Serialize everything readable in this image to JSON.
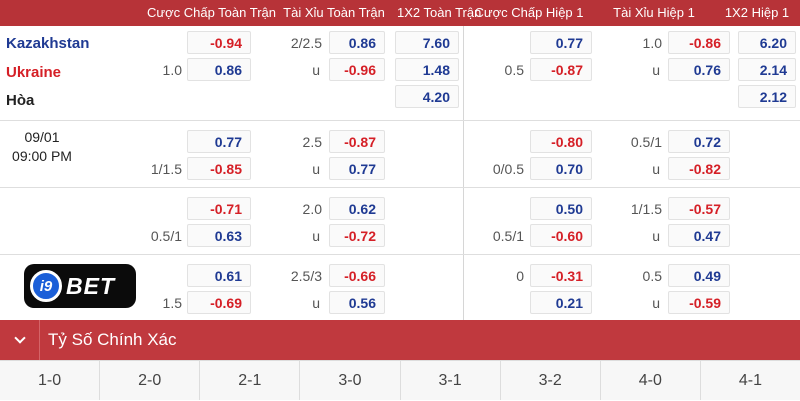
{
  "headers": [
    "Cược Chấp Toàn Trận",
    "Tài Xỉu Toàn Trận",
    "1X2 Toàn Trận",
    "Cược Chấp Hiệp 1",
    "Tài Xỉu Hiệp 1",
    "1X2 Hiệp 1"
  ],
  "match": {
    "home": "Kazakhstan",
    "away": "Ukraine",
    "draw": "Hòa",
    "date": "09/01",
    "time": "09:00 PM"
  },
  "rows": [
    {
      "ft_hcp": "1.0",
      "ft_hcp_home": "-0.94",
      "ft_hcp_away": "0.86",
      "ft_ou": "2/2.5",
      "ft_ou_u": "u",
      "ft_ou_over": "0.86",
      "ft_ou_under": "-0.96",
      "ft_1x2": [
        "7.60",
        "1.48",
        "4.20"
      ],
      "h1_hcp": "0.5",
      "h1_hcp_home": "0.77",
      "h1_hcp_away": "-0.87",
      "h1_ou": "1.0",
      "h1_ou_u": "u",
      "h1_ou_over": "-0.86",
      "h1_ou_under": "0.76",
      "h1_1x2": [
        "6.20",
        "2.14",
        "2.12"
      ]
    },
    {
      "ft_hcp": "1/1.5",
      "ft_hcp_home": "0.77",
      "ft_hcp_away": "-0.85",
      "ft_ou": "2.5",
      "ft_ou_u": "u",
      "ft_ou_over": "-0.87",
      "ft_ou_under": "0.77",
      "h1_hcp": "0/0.5",
      "h1_hcp_home": "-0.80",
      "h1_hcp_away": "0.70",
      "h1_ou": "0.5/1",
      "h1_ou_u": "u",
      "h1_ou_over": "0.72",
      "h1_ou_under": "-0.82"
    },
    {
      "ft_hcp": "0.5/1",
      "ft_hcp_home": "-0.71",
      "ft_hcp_away": "0.63",
      "ft_ou": "2.0",
      "ft_ou_u": "u",
      "ft_ou_over": "0.62",
      "ft_ou_under": "-0.72",
      "h1_hcp": "0.5/1",
      "h1_hcp_home": "0.50",
      "h1_hcp_away": "-0.60",
      "h1_ou": "1/1.5",
      "h1_ou_u": "u",
      "h1_ou_over": "-0.57",
      "h1_ou_under": "0.47"
    },
    {
      "ft_hcp": "1.5",
      "ft_hcp_home": "0.61",
      "ft_hcp_away": "-0.69",
      "ft_ou": "2.5/3",
      "ft_ou_u": "u",
      "ft_ou_over": "-0.66",
      "ft_ou_under": "0.56",
      "h1_hcp": "0",
      "h1_hcp_home": "-0.31",
      "h1_hcp_away": "0.21",
      "h1_ou": "0.5",
      "h1_ou_u": "u",
      "h1_ou_over": "0.49",
      "h1_ou_under": "-0.59"
    }
  ],
  "logo": {
    "ring": "i9",
    "brand": "BET"
  },
  "section": {
    "title": "Tỷ Số Chính Xác"
  },
  "scores": [
    "1-0",
    "2-0",
    "2-1",
    "3-0",
    "3-1",
    "3-2",
    "4-0",
    "4-1"
  ],
  "icons": {
    "collapse": "chevron-down-icon"
  }
}
